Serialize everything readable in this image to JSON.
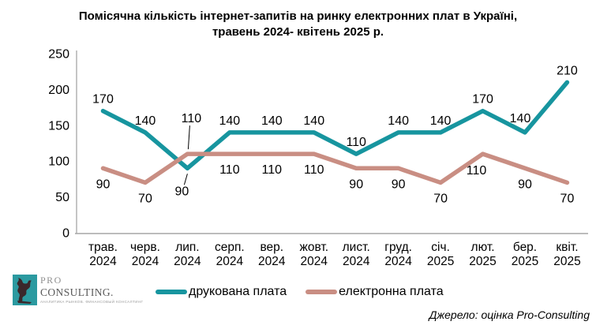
{
  "title": {
    "line1": "Помісячна кількість інтернет-запитів на ринку електронних плат в Україні,",
    "line2": "травень 2024- квітень 2025 р."
  },
  "chart_data": {
    "type": "line",
    "title": "Помісячна кількість інтернет-запитів на ринку електронних плат в Україні, травень 2024- квітень 2025 р.",
    "categories": [
      "трав. 2024",
      "черв. 2024",
      "лип. 2024",
      "серп. 2024",
      "вер. 2024",
      "жовт. 2024",
      "лист. 2024",
      "груд. 2024",
      "січ. 2025",
      "лют. 2025",
      "бер. 2025",
      "квіт. 2025"
    ],
    "series": [
      {
        "name": "друкована плата",
        "color": "#17959F",
        "values": [
          170,
          140,
          90,
          140,
          140,
          140,
          110,
          140,
          140,
          170,
          140,
          210
        ]
      },
      {
        "name": "електронна плата",
        "color": "#C98E83",
        "values": [
          90,
          70,
          110,
          110,
          110,
          110,
          90,
          90,
          70,
          110,
          90,
          70
        ]
      }
    ],
    "ylim": [
      0,
      250
    ],
    "yticks": [
      0,
      50,
      100,
      150,
      200,
      250
    ],
    "grid": false,
    "legend_position": "bottom",
    "axis_color": "#A6A6A6",
    "label_color": "#000000",
    "label_placement": {
      "друкована плата": [
        "above",
        "above",
        "leader-below",
        "above",
        "above",
        "above",
        "above",
        "above",
        "above",
        "above",
        "above-left",
        "above"
      ],
      "електронна плата": [
        "below",
        "below",
        "leader-above",
        "below",
        "below",
        "below",
        "below",
        "below",
        "below",
        "below-left",
        "below",
        "below"
      ]
    }
  },
  "logo": {
    "line1": "PRO",
    "line2": "CONSULTING.",
    "tagline": "АНАЛИТИКА РЫНКОВ. ФИНАНСОВЫЙ КОНСАЛТИНГ"
  },
  "source": "Джерело: оцінка Pro-Consulting"
}
